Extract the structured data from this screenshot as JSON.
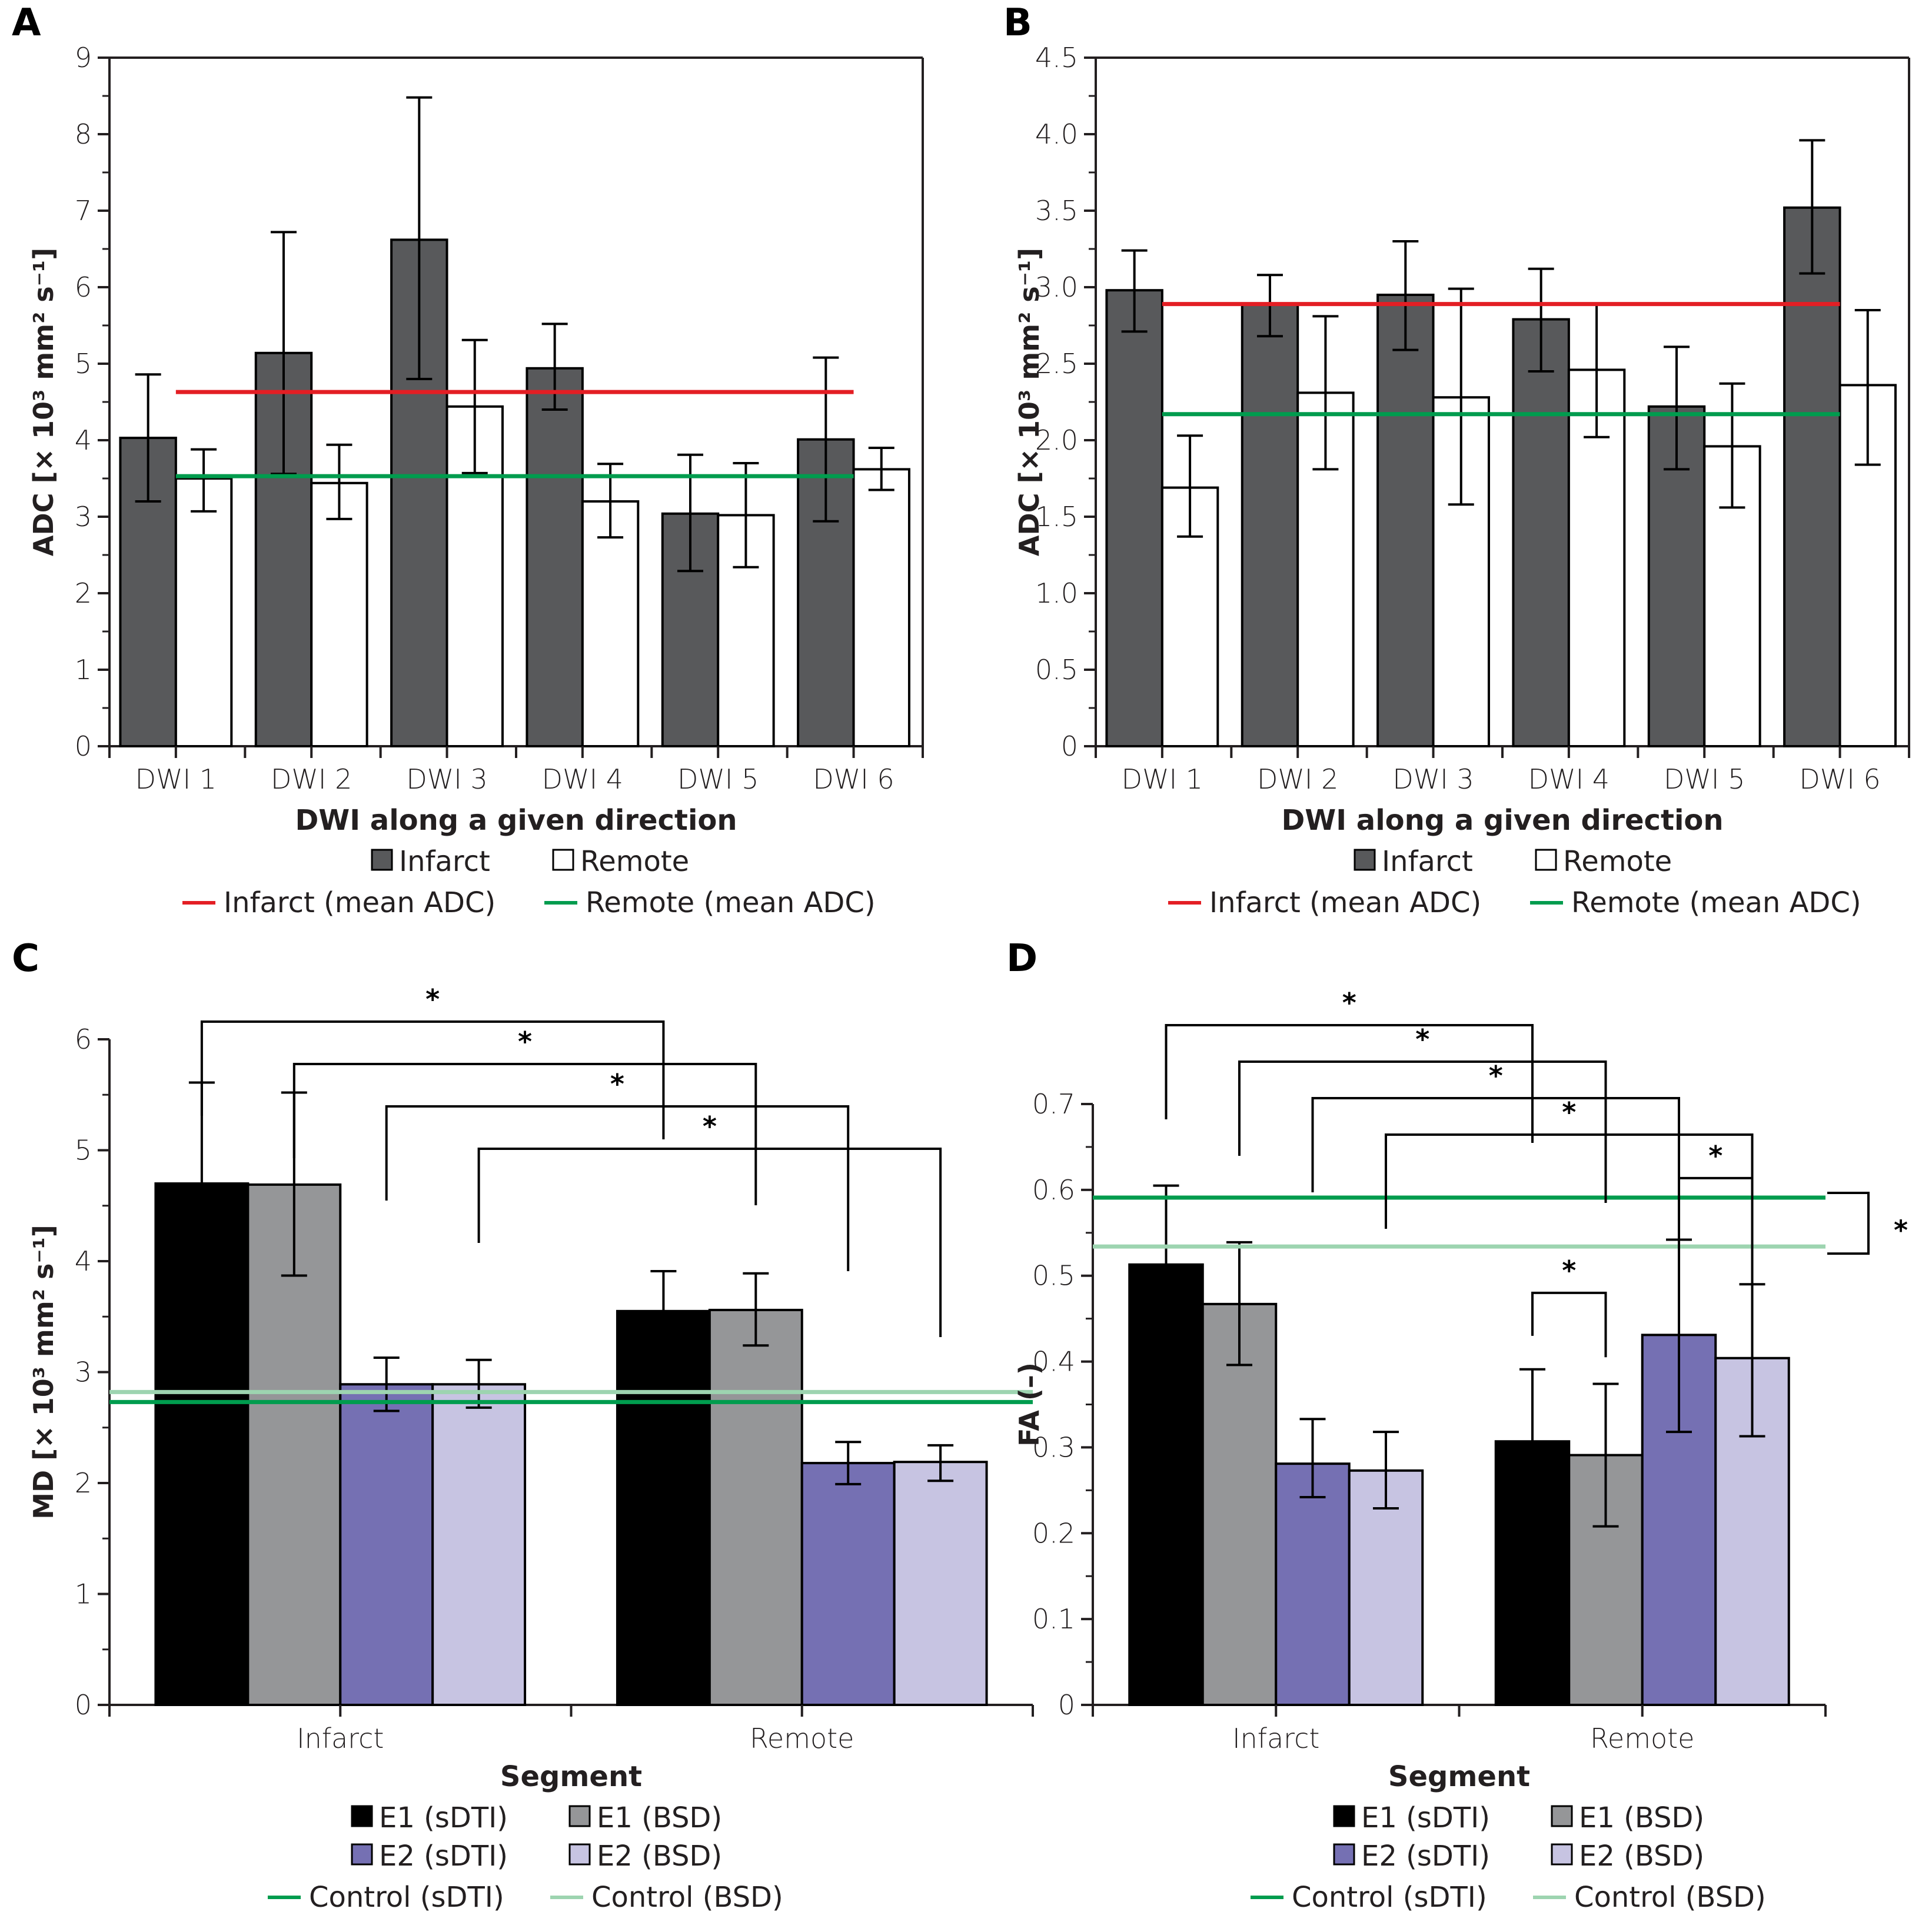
{
  "figure": {
    "colors": {
      "infarct": "#58595b",
      "remote": "#ffffff",
      "infarct_mean": "#e31e24",
      "remote_mean": "#009c4e",
      "e1_sdti": "#000000",
      "e1_bsd": "#959698",
      "e2_sdti": "#7570b3",
      "e2_bsd": "#c7c4e2",
      "control_sdti": "#009c4e",
      "control_bsd": "#9dd4b0"
    }
  },
  "chart_data": [
    {
      "panel": "A",
      "type": "bar",
      "title": "",
      "xlabel": "DWI along a given direction",
      "ylabel": "ADC [× 10³ mm² s⁻¹]",
      "ylim": [
        0,
        9
      ],
      "yticks": [
        "0",
        "1",
        "2",
        "3",
        "4",
        "5",
        "6",
        "7",
        "8",
        "9"
      ],
      "ytick_values": [
        0,
        1,
        2,
        3,
        4,
        5,
        6,
        7,
        8,
        9
      ],
      "categories": [
        "DWI 1",
        "DWI 2",
        "DWI 3",
        "DWI 4",
        "DWI 5",
        "DWI 6"
      ],
      "series": [
        {
          "name": "Infarct",
          "color_key": "infarct",
          "values": [
            4.03,
            5.14,
            6.62,
            4.94,
            3.04,
            4.01
          ],
          "err_high": [
            4.86,
            6.72,
            8.48,
            5.52,
            3.81,
            5.08
          ],
          "err_low": [
            3.2,
            3.56,
            4.8,
            4.4,
            2.29,
            2.94
          ]
        },
        {
          "name": "Remote",
          "color_key": "remote",
          "values": [
            3.5,
            3.44,
            4.44,
            3.2,
            3.02,
            3.62
          ],
          "err_high": [
            3.88,
            3.94,
            5.31,
            3.69,
            3.7,
            3.9
          ],
          "err_low": [
            3.07,
            2.97,
            3.57,
            2.73,
            2.34,
            3.35
          ]
        }
      ],
      "hlines": [
        {
          "name": "Infarct (mean ADC)",
          "value": 4.63,
          "color_key": "infarct_mean"
        },
        {
          "name": "Remote (mean ADC)",
          "value": 3.53,
          "color_key": "remote_mean"
        }
      ],
      "legend": [
        {
          "label": "Infarct",
          "kind": "box",
          "color_key": "infarct"
        },
        {
          "label": "Remote",
          "kind": "box",
          "color_key": "remote"
        },
        {
          "label": "Infarct (mean ADC)",
          "kind": "line",
          "color_key": "infarct_mean"
        },
        {
          "label": "Remote (mean ADC)",
          "kind": "line",
          "color_key": "remote_mean"
        }
      ],
      "legend_position": "bottom",
      "grid": false
    },
    {
      "panel": "B",
      "type": "bar",
      "title": "",
      "xlabel": "DWI along a given direction",
      "ylabel": "ADC [× 10³ mm² s⁻¹]",
      "ylim": [
        0,
        4.5
      ],
      "yticks": [
        "0",
        "0.5",
        "1.0",
        "1.5",
        "2.0",
        "2.5",
        "3.0",
        "3.5",
        "4.0",
        "4.5"
      ],
      "ytick_values": [
        0,
        0.5,
        1,
        1.5,
        2,
        2.5,
        3,
        3.5,
        4,
        4.5
      ],
      "categories": [
        "DWI 1",
        "DWI 2",
        "DWI 3",
        "DWI 4",
        "DWI 5",
        "DWI 6"
      ],
      "series": [
        {
          "name": "Infarct",
          "color_key": "infarct",
          "values": [
            2.98,
            2.89,
            2.95,
            2.79,
            2.22,
            3.52
          ],
          "err_high": [
            3.24,
            3.08,
            3.3,
            3.12,
            2.61,
            3.96
          ],
          "err_low": [
            2.71,
            2.68,
            2.59,
            2.45,
            1.81,
            3.09
          ]
        },
        {
          "name": "Remote",
          "color_key": "remote",
          "values": [
            1.69,
            2.31,
            2.28,
            2.46,
            1.96,
            2.36
          ],
          "err_high": [
            2.03,
            2.81,
            2.99,
            2.89,
            2.37,
            2.85
          ],
          "err_low": [
            1.37,
            1.81,
            1.58,
            2.02,
            1.56,
            1.84
          ]
        }
      ],
      "hlines": [
        {
          "name": "Infarct (mean ADC)",
          "value": 2.89,
          "color_key": "infarct_mean"
        },
        {
          "name": "Remote (mean ADC)",
          "value": 2.17,
          "color_key": "remote_mean"
        }
      ],
      "legend": [
        {
          "label": "Infarct",
          "kind": "box",
          "color_key": "infarct"
        },
        {
          "label": "Remote",
          "kind": "box",
          "color_key": "remote"
        },
        {
          "label": "Infarct (mean ADC)",
          "kind": "line",
          "color_key": "infarct_mean"
        },
        {
          "label": "Remote (mean ADC)",
          "kind": "line",
          "color_key": "remote_mean"
        }
      ],
      "legend_position": "bottom",
      "grid": false
    },
    {
      "panel": "C",
      "type": "bar",
      "title": "",
      "xlabel": "Segment",
      "ylabel": "MD [× 10³ mm² s⁻¹]",
      "ylim": [
        0,
        6
      ],
      "yticks": [
        "0",
        "1",
        "2",
        "3",
        "4",
        "5",
        "6"
      ],
      "ytick_values": [
        0,
        1,
        2,
        3,
        4,
        5,
        6
      ],
      "categories": [
        "Infarct",
        "Remote"
      ],
      "series": [
        {
          "name": "E1 (sDTI)",
          "color_key": "e1_sdti",
          "values": [
            4.7,
            3.55
          ],
          "err_high": [
            5.61,
            3.91
          ],
          "err_low": [
            4.7,
            3.55
          ]
        },
        {
          "name": "E1 (BSD)",
          "color_key": "e1_bsd",
          "values": [
            4.69,
            3.56
          ],
          "err_high": [
            5.52,
            3.89
          ],
          "err_low": [
            3.87,
            3.24
          ]
        },
        {
          "name": "E2 (sDTI)",
          "color_key": "e2_sdti",
          "values": [
            2.89,
            2.18
          ],
          "err_high": [
            3.13,
            2.37
          ],
          "err_low": [
            2.65,
            1.99
          ]
        },
        {
          "name": "E2 (BSD)",
          "color_key": "e2_bsd",
          "values": [
            2.89,
            2.19
          ],
          "err_high": [
            3.11,
            2.34
          ],
          "err_low": [
            2.68,
            2.02
          ]
        }
      ],
      "hlines": [
        {
          "name": "Control (sDTI)",
          "value": 2.73,
          "color_key": "control_sdti"
        },
        {
          "name": "Control (BSD)",
          "value": 2.82,
          "color_key": "control_bsd"
        }
      ],
      "significance": [
        {
          "from": [
            0,
            0
          ],
          "to": [
            1,
            0
          ],
          "label": "*"
        },
        {
          "from": [
            0,
            1
          ],
          "to": [
            1,
            1
          ],
          "label": "*"
        },
        {
          "from": [
            0,
            2
          ],
          "to": [
            1,
            2
          ],
          "label": "*"
        },
        {
          "from": [
            0,
            3
          ],
          "to": [
            1,
            3
          ],
          "label": "*"
        }
      ],
      "legend": [
        {
          "label": "E1 (sDTI)",
          "kind": "box",
          "color_key": "e1_sdti"
        },
        {
          "label": "E1 (BSD)",
          "kind": "box",
          "color_key": "e1_bsd"
        },
        {
          "label": "E2 (sDTI)",
          "kind": "box",
          "color_key": "e2_sdti"
        },
        {
          "label": "E2 (BSD)",
          "kind": "box",
          "color_key": "e2_bsd"
        },
        {
          "label": "Control (sDTI)",
          "kind": "line",
          "color_key": "control_sdti"
        },
        {
          "label": "Control (BSD)",
          "kind": "line",
          "color_key": "control_bsd"
        }
      ],
      "legend_position": "bottom",
      "grid": false
    },
    {
      "panel": "D",
      "type": "bar",
      "title": "",
      "xlabel": "Segment",
      "ylabel": "FA (–)",
      "ylim": [
        0,
        0.7
      ],
      "yticks": [
        "0",
        "0.1",
        "0.2",
        "0.3",
        "0.4",
        "0.5",
        "0.6",
        "0.7"
      ],
      "ytick_values": [
        0,
        0.1,
        0.2,
        0.3,
        0.4,
        0.5,
        0.6,
        0.7
      ],
      "categories": [
        "Infarct",
        "Remote"
      ],
      "series": [
        {
          "name": "E1 (sDTI)",
          "color_key": "e1_sdti",
          "values": [
            0.513,
            0.307
          ],
          "err_high": [
            0.605,
            0.391
          ],
          "err_low": [
            0.513,
            0.307
          ]
        },
        {
          "name": "E1 (BSD)",
          "color_key": "e1_bsd",
          "values": [
            0.467,
            0.291
          ],
          "err_high": [
            0.539,
            0.374
          ],
          "err_low": [
            0.396,
            0.208
          ]
        },
        {
          "name": "E2 (sDTI)",
          "color_key": "e2_sdti",
          "values": [
            0.281,
            0.431
          ],
          "err_high": [
            0.333,
            0.542
          ],
          "err_low": [
            0.242,
            0.318
          ]
        },
        {
          "name": "E2 (BSD)",
          "color_key": "e2_bsd",
          "values": [
            0.273,
            0.404
          ],
          "err_high": [
            0.318,
            0.49
          ],
          "err_low": [
            0.229,
            0.313
          ]
        }
      ],
      "hlines": [
        {
          "name": "Control (sDTI)",
          "value": 0.591,
          "color_key": "control_sdti"
        },
        {
          "name": "Control (BSD)",
          "value": 0.534,
          "color_key": "control_bsd"
        }
      ],
      "significance": [
        {
          "from": [
            0,
            0
          ],
          "to": [
            1,
            0
          ],
          "label": "*"
        },
        {
          "from": [
            0,
            1
          ],
          "to": [
            1,
            1
          ],
          "label": "*"
        },
        {
          "from": [
            0,
            2
          ],
          "to": [
            1,
            2
          ],
          "label": "*"
        },
        {
          "from": [
            0,
            3
          ],
          "to": [
            1,
            3
          ],
          "label": "*"
        },
        {
          "from": [
            1,
            2
          ],
          "to": [
            1,
            3
          ],
          "label": "*"
        },
        {
          "from": [
            1,
            0
          ],
          "to": [
            1,
            1
          ],
          "label": "*"
        },
        {
          "from": "control_sdti",
          "to": "control_bsd",
          "label": "*"
        }
      ],
      "legend": [
        {
          "label": "E1 (sDTI)",
          "kind": "box",
          "color_key": "e1_sdti"
        },
        {
          "label": "E1 (BSD)",
          "kind": "box",
          "color_key": "e1_bsd"
        },
        {
          "label": "E2 (sDTI)",
          "kind": "box",
          "color_key": "e2_sdti"
        },
        {
          "label": "E2 (BSD)",
          "kind": "box",
          "color_key": "e2_bsd"
        },
        {
          "label": "Control (sDTI)",
          "kind": "line",
          "color_key": "control_sdti"
        },
        {
          "label": "Control (BSD)",
          "kind": "line",
          "color_key": "control_bsd"
        }
      ],
      "legend_position": "bottom",
      "grid": false
    }
  ]
}
